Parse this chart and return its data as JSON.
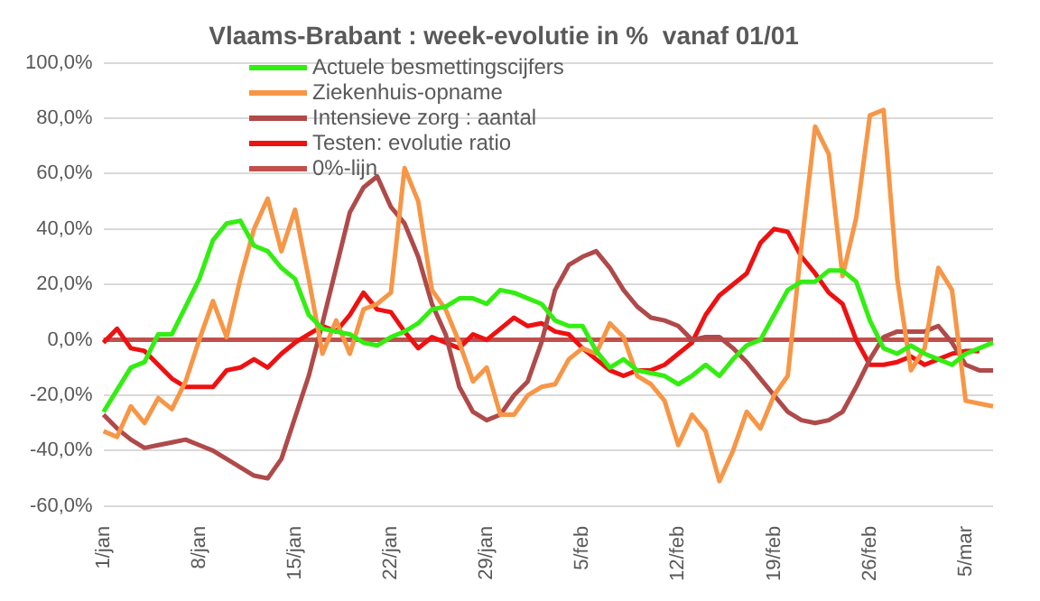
{
  "chart_data": {
    "type": "line",
    "title": "Vlaams-Brabant : week-evolutie in %  vanaf 01/01",
    "categories": [
      "1/jan",
      null,
      null,
      null,
      null,
      null,
      null,
      "8/jan",
      null,
      null,
      null,
      null,
      null,
      null,
      "15/jan",
      null,
      null,
      null,
      null,
      null,
      null,
      "22/jan",
      null,
      null,
      null,
      null,
      null,
      null,
      "29/jan",
      null,
      null,
      null,
      null,
      null,
      null,
      "5/feb",
      null,
      null,
      null,
      null,
      null,
      null,
      "12/feb",
      null,
      null,
      null,
      null,
      null,
      null,
      "19/feb",
      null,
      null,
      null,
      null,
      null,
      null,
      "26/feb",
      null,
      null,
      null,
      null,
      null,
      null,
      "5/mar",
      null,
      null
    ],
    "series": [
      {
        "name": "Actuele besmettingscijfers",
        "color": "#33ee11",
        "values": [
          -26,
          -18,
          -10,
          -8,
          2,
          2,
          12,
          22,
          36,
          42,
          43,
          34,
          32,
          26,
          22,
          9,
          4,
          3,
          2,
          -1,
          -2,
          1,
          3,
          6,
          11,
          12,
          15,
          15,
          13,
          18,
          17,
          15,
          13,
          7,
          5,
          5,
          -4,
          -10,
          -7,
          -11,
          -12,
          -13,
          -16,
          -13,
          -9,
          -13,
          -7,
          -2,
          0,
          9,
          18,
          21,
          21,
          25,
          25,
          21,
          7,
          -3,
          -5,
          -2,
          -5,
          -7,
          -9,
          -5,
          -3,
          -1
        ]
      },
      {
        "name": "Ziekenhuis-opname",
        "color": "#f79646",
        "values": [
          -33,
          -35,
          -24,
          -30,
          -21,
          -25,
          -15,
          0,
          14,
          1,
          22,
          40,
          51,
          32,
          47,
          22,
          -5,
          7,
          -5,
          11,
          13,
          17,
          62,
          50,
          18,
          11,
          -1,
          -15,
          -10,
          -27,
          -27,
          -20,
          -17,
          -16,
          -7,
          -3,
          -5,
          6,
          1,
          -13,
          -16,
          -22,
          -38,
          -27,
          -33,
          -51,
          -40,
          -26,
          -32,
          -20,
          -13,
          34,
          77,
          67,
          23,
          44,
          81,
          83,
          22,
          -11,
          -3,
          26,
          18,
          -22,
          -23,
          -24
        ]
      },
      {
        "name": "Intensieve zorg : aantal",
        "color": "#b04a4a",
        "values": [
          -27,
          -32,
          -36,
          -39,
          -38,
          -37,
          -36,
          -38,
          -40,
          -43,
          -46,
          -49,
          -50,
          -43,
          -28,
          -13,
          6,
          26,
          46,
          55,
          59,
          48,
          42,
          30,
          13,
          2,
          -17,
          -26,
          -29,
          -27,
          -20,
          -15,
          -1,
          18,
          27,
          30,
          32,
          26,
          18,
          12,
          8,
          7,
          5,
          0,
          1,
          1,
          -3,
          -8,
          -14,
          -20,
          -26,
          -29,
          -30,
          -29,
          -26,
          -17,
          -7,
          1,
          3,
          3,
          3,
          5,
          -1,
          -9,
          -11,
          -11
        ]
      },
      {
        "name": "Testen: evolutie ratio",
        "color": "#ee1111",
        "values": [
          -1,
          4,
          -3,
          -4,
          -9,
          -14,
          -17,
          -17,
          -17,
          -11,
          -10,
          -7,
          -10,
          -5,
          -1,
          2,
          5,
          3,
          9,
          17,
          11,
          10,
          3,
          -3,
          1,
          -1,
          -3,
          2,
          0,
          4,
          8,
          5,
          6,
          3,
          2,
          -3,
          -7,
          -11,
          -13,
          -11,
          -11,
          -9,
          -5,
          -1,
          9,
          16,
          20,
          24,
          35,
          40,
          39,
          30,
          24,
          17,
          13,
          0,
          -9,
          -9,
          -8,
          -6,
          -9,
          -7,
          -5,
          -4,
          -4,
          null
        ]
      },
      {
        "name": "0%-lijn",
        "color": "#c0504d",
        "values": [
          0,
          0,
          0,
          0,
          0,
          0,
          0,
          0,
          0,
          0,
          0,
          0,
          0,
          0,
          0,
          0,
          0,
          0,
          0,
          0,
          0,
          0,
          0,
          0,
          0,
          0,
          0,
          0,
          0,
          0,
          0,
          0,
          0,
          0,
          0,
          0,
          0,
          0,
          0,
          0,
          0,
          0,
          0,
          0,
          0,
          0,
          0,
          0,
          0,
          0,
          0,
          0,
          0,
          0,
          0,
          0,
          0,
          0,
          0,
          0,
          0,
          0,
          0,
          0,
          0,
          0
        ]
      }
    ],
    "ylim": [
      -60,
      100
    ],
    "yticks": [
      {
        "value": -60,
        "label": "-60,0%"
      },
      {
        "value": -40,
        "label": "-40,0%"
      },
      {
        "value": -20,
        "label": "-20,0%"
      },
      {
        "value": 0,
        "label": "0,0%"
      },
      {
        "value": 20,
        "label": "20,0%"
      },
      {
        "value": 40,
        "label": "40,0%"
      },
      {
        "value": 60,
        "label": "60,0%"
      },
      {
        "value": 80,
        "label": "80,0%"
      },
      {
        "value": 100,
        "label": "100,0%"
      }
    ],
    "grid": "y",
    "legend": "top left",
    "marker": "none",
    "line_style": "solid"
  }
}
